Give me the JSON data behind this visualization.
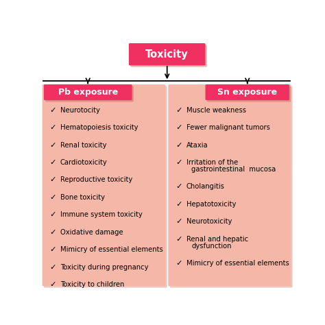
{
  "title": "Toxicity",
  "title_bg": "#F03060",
  "title_text_color": "white",
  "left_header": "Pb exposure",
  "right_header": "Sn exposure",
  "header_bg": "#F03060",
  "header_text_color": "white",
  "box_bg": "#F5B8A8",
  "shadow_color": "#D08878",
  "left_items": [
    "Neurotocity",
    "Hematopoiesis toxicity",
    "Renal toxicity",
    "Cardiotoxicity",
    "Reproductive toxicity",
    "Bone toxicity",
    "Immune system toxicity",
    "Oxidative damage",
    "Mimicry of essential elements",
    "Toxicity during pregnancy",
    "Toxicity to children"
  ],
  "right_items_lines": [
    [
      "Muscle weakness"
    ],
    [
      "Fewer malignant tumors"
    ],
    [
      "Ataxia"
    ],
    [
      "Irritation of the",
      "gastrointestinal  mucosa"
    ],
    [
      "Cholangitis"
    ],
    [
      "Hepatotoxicity"
    ],
    [
      "Neurotoxicity"
    ],
    [
      "Renal and hepatic",
      "dysfunction"
    ],
    [
      "Mimicry of essential elements"
    ]
  ],
  "checkmark": "✓",
  "background_color": "white",
  "line_color": "black",
  "item_text_color": "black",
  "item_fontsize": 7.2,
  "header_fontsize": 9.0,
  "title_fontsize": 10.5
}
